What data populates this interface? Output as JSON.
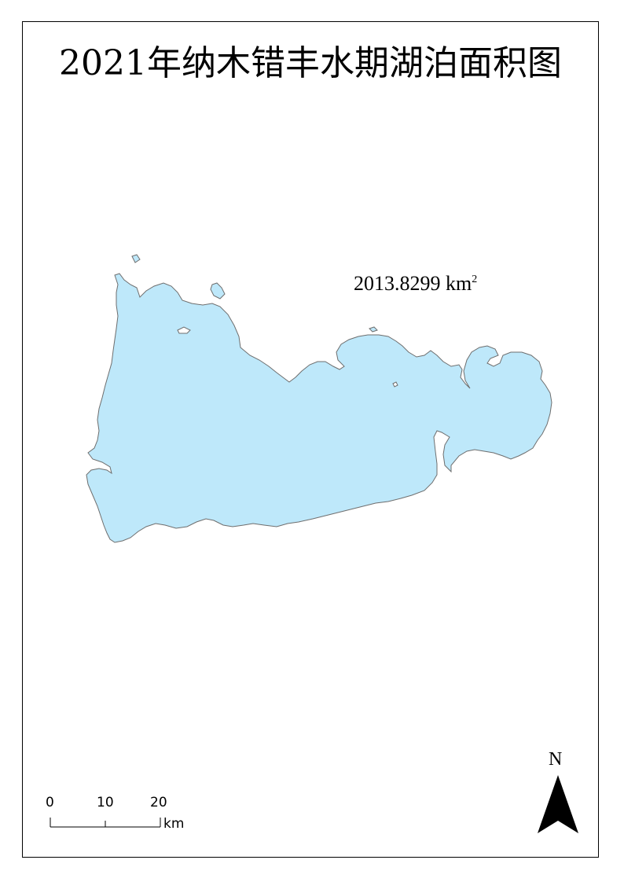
{
  "map": {
    "title": "2021年纳木错丰水期湖泊面积图",
    "area_value": "2013.8299 km",
    "area_unit_superscript": "2",
    "lake_fill_color": "#bee8fa",
    "lake_outline_color": "#6e6e6e"
  },
  "scale_bar": {
    "tick_labels": [
      "0",
      "10",
      "20"
    ],
    "unit": "km"
  },
  "north_arrow": {
    "label": "N",
    "icon": "north-arrow-icon"
  }
}
